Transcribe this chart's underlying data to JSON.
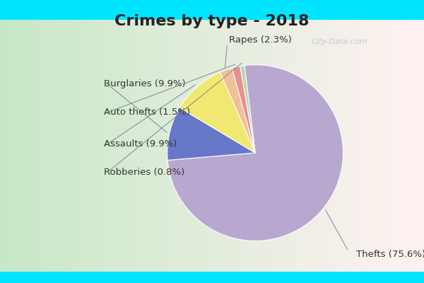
{
  "title": "Crimes by type - 2018",
  "slices": [
    {
      "label": "Thefts",
      "pct": 75.6,
      "color": "#b8a8d0"
    },
    {
      "label": "Burglaries",
      "pct": 9.9,
      "color": "#6878c8"
    },
    {
      "label": "Assaults",
      "pct": 9.9,
      "color": "#f0e870"
    },
    {
      "label": "Rapes",
      "pct": 2.3,
      "color": "#f0c098"
    },
    {
      "label": "Auto thefts",
      "pct": 1.5,
      "color": "#e89090"
    },
    {
      "label": "Robberies",
      "pct": 0.8,
      "color": "#b8d8b0"
    }
  ],
  "startangle": 97,
  "background_border": "#00e5ff",
  "background_main_left": "#c8e8c8",
  "background_main_right": "#e8f4f0",
  "title_color": "#222222",
  "title_fontsize": 16,
  "label_fontsize": 9.5,
  "label_color": "#333333",
  "watermark": "City-Data.com",
  "watermark_color": "#aabbcc"
}
